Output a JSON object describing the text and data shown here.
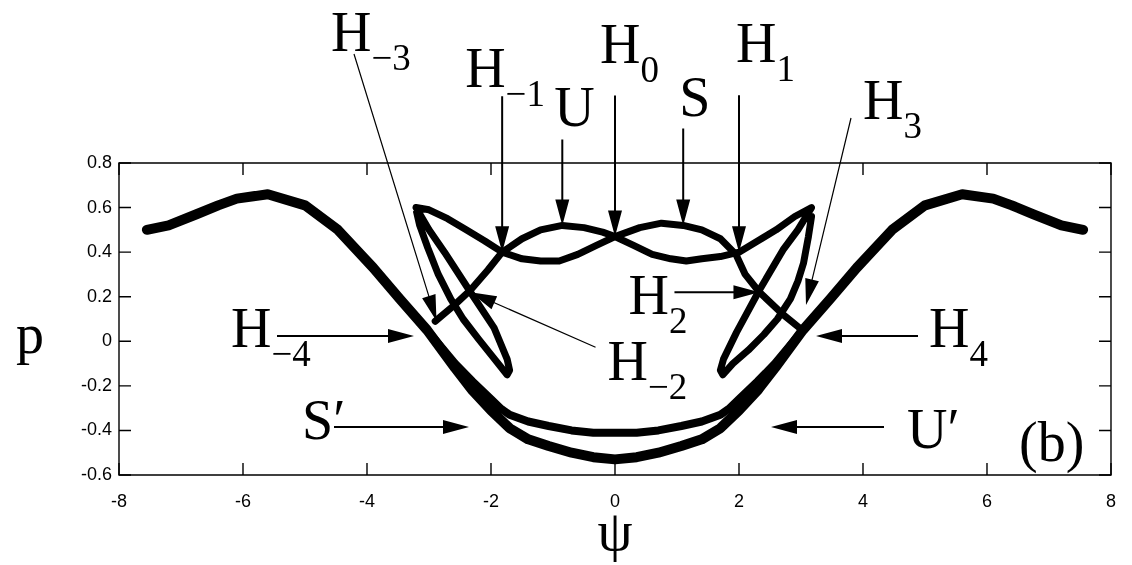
{
  "chart_data": {
    "type": "line",
    "xlabel": "ψ",
    "ylabel": "p",
    "xlim": [
      -8,
      8
    ],
    "ylim": [
      -0.6,
      0.8
    ],
    "xticks": [
      -8,
      -6,
      -4,
      -2,
      0,
      2,
      4,
      6,
      8
    ],
    "yticks": [
      -0.6,
      -0.4,
      -0.2,
      0,
      0.2,
      0.4,
      0.6,
      0.8
    ],
    "grid": false,
    "marker": "none",
    "line_style": "solid",
    "series": [
      {
        "color": "#000000",
        "x": [
          -7.55,
          -7.2,
          -6.75,
          -6.4,
          -6.1,
          -5.6,
          -5.0,
          -4.47,
          -3.9,
          -3.47,
          -3.03,
          -2.58,
          -2.3,
          -2.0,
          -1.7,
          -1.4,
          -1.07,
          -0.7,
          -0.35,
          0,
          0.35,
          0.7,
          1.07,
          1.4,
          1.7,
          2.0,
          2.3,
          2.58,
          3.03,
          3.47,
          3.9,
          4.47,
          5.0,
          5.6,
          6.1,
          6.4,
          6.75,
          7.2,
          7.55
        ],
        "values": [
          0.5,
          0.52,
          0.57,
          0.61,
          0.64,
          0.66,
          0.61,
          0.5,
          0.33,
          0.19,
          0.05,
          -0.12,
          -0.22,
          -0.31,
          -0.39,
          -0.44,
          -0.47,
          -0.5,
          -0.52,
          -0.53,
          -0.52,
          -0.5,
          -0.47,
          -0.44,
          -0.39,
          -0.31,
          -0.22,
          -0.12,
          0.05,
          0.19,
          0.33,
          0.5,
          0.61,
          0.66,
          0.64,
          0.61,
          0.57,
          0.52,
          0.5
        ]
      },
      {
        "color": "#000000",
        "x": [
          -3.03,
          -2.58,
          -2.3,
          -2.0,
          -1.85,
          -1.7,
          -1.4,
          -1.07,
          -0.7,
          -0.35,
          0,
          0.35,
          0.7,
          1.07,
          1.4,
          1.7,
          1.85,
          2.0,
          2.3,
          2.58,
          3.03
        ],
        "values": [
          0.05,
          -0.1,
          -0.18,
          -0.26,
          -0.3,
          -0.33,
          -0.36,
          -0.38,
          -0.4,
          -0.41,
          -0.41,
          -0.41,
          -0.4,
          -0.38,
          -0.36,
          -0.33,
          -0.3,
          -0.26,
          -0.18,
          -0.1,
          0.05
        ]
      },
      {
        "color": "#000000",
        "x": [
          -2.9,
          -2.6,
          -2.33,
          -2.05,
          -1.82,
          -1.5,
          -1.2,
          -0.85,
          -0.5,
          -0.2,
          0,
          0.3,
          0.6,
          0.9,
          1.15,
          1.4,
          1.7,
          2.0,
          2.3,
          2.6,
          2.9,
          3.17,
          2.95,
          2.71,
          2.33,
          1.96,
          1.75,
          1.7,
          1.74,
          1.9,
          2.15,
          2.4,
          2.62,
          2.83,
          2.95,
          3.04,
          3.12,
          3.17
        ],
        "values": [
          0.09,
          0.16,
          0.23,
          0.32,
          0.4,
          0.46,
          0.5,
          0.52,
          0.51,
          0.49,
          0.47,
          0.43,
          0.39,
          0.37,
          0.36,
          0.37,
          0.38,
          0.4,
          0.45,
          0.5,
          0.56,
          0.6,
          0.5,
          0.41,
          0.23,
          0.04,
          -0.08,
          -0.13,
          -0.15,
          -0.1,
          -0.04,
          0.03,
          0.1,
          0.19,
          0.27,
          0.35,
          0.47,
          0.56
        ]
      },
      {
        "color": "#000000",
        "x": [
          3.02,
          2.71,
          2.33,
          2.1,
          1.95,
          1.7,
          1.4,
          1.1,
          0.75,
          0.4,
          0.2,
          0,
          -0.3,
          -0.6,
          -0.9,
          -1.2,
          -1.5,
          -1.82,
          -2.1,
          -2.4,
          -2.7,
          -3.0,
          -3.21,
          -3.0,
          -2.75,
          -2.33,
          -1.95,
          -1.74,
          -1.7,
          -1.74,
          -2.0,
          -2.2,
          -2.45,
          -2.65,
          -2.85,
          -3.02,
          -3.15,
          -3.2
        ],
        "values": [
          0.05,
          0.12,
          0.22,
          0.3,
          0.39,
          0.46,
          0.5,
          0.52,
          0.53,
          0.51,
          0.49,
          0.47,
          0.43,
          0.39,
          0.36,
          0.36,
          0.37,
          0.4,
          0.45,
          0.5,
          0.55,
          0.59,
          0.6,
          0.5,
          0.4,
          0.22,
          0.06,
          -0.08,
          -0.13,
          -0.15,
          -0.06,
          0.01,
          0.1,
          0.19,
          0.3,
          0.42,
          0.52,
          0.58
        ]
      }
    ],
    "annotations": [
      "H$_{−3}$",
      {
        "text": "H$_{−1}$",
        "x": -1.82,
        "y": 0.4
      },
      {
        "text": "U",
        "x": -0.85,
        "y": 0.52
      },
      {
        "text": "H$_{0}$",
        "x": 0,
        "y": 0.47
      },
      {
        "text": "S",
        "x": 1.1,
        "y": 0.52
      },
      {
        "text": "H$_{1}$",
        "x": 2.0,
        "y": 0.4
      },
      "H$_{3}$",
      "H$_{−4}$",
      {
        "text": "H$_{−2}$",
        "x": -2.33,
        "y": 0.22
      },
      {
        "text": "H$_{2}$",
        "x": 2.33,
        "y": 0.22
      },
      "H$_{4}$",
      "S′",
      "U′",
      "(b)"
    ]
  }
}
